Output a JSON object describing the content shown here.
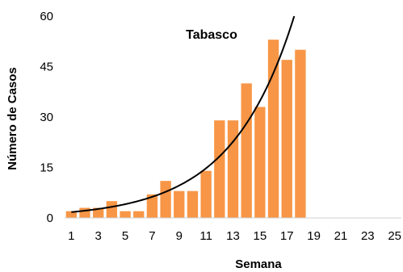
{
  "chart_data": {
    "type": "bar",
    "title": "Tabasco",
    "xlabel": "Semana",
    "ylabel": "Número de Casos",
    "x_ticks": [
      "1",
      "3",
      "5",
      "7",
      "9",
      "11",
      "13",
      "15",
      "17",
      "19",
      "21",
      "23",
      "25"
    ],
    "y_ticks": [
      "0",
      "15",
      "30",
      "45",
      "60"
    ],
    "ylim": [
      0,
      60
    ],
    "xlim": [
      1,
      25
    ],
    "categories": [
      1,
      2,
      3,
      4,
      5,
      6,
      7,
      8,
      9,
      10,
      11,
      12,
      13,
      14,
      15,
      16,
      17,
      18,
      19,
      20,
      21,
      22,
      23,
      24,
      25
    ],
    "values": [
      2,
      3,
      3,
      5,
      2,
      2,
      7,
      11,
      8,
      8,
      14,
      29,
      29,
      40,
      33,
      53,
      47,
      50,
      null,
      null,
      null,
      null,
      null,
      null,
      null
    ],
    "trendline": {
      "type": "exponential"
    },
    "grid": false,
    "colors": {
      "bars": "#F79646",
      "trendline": "#000000"
    }
  }
}
